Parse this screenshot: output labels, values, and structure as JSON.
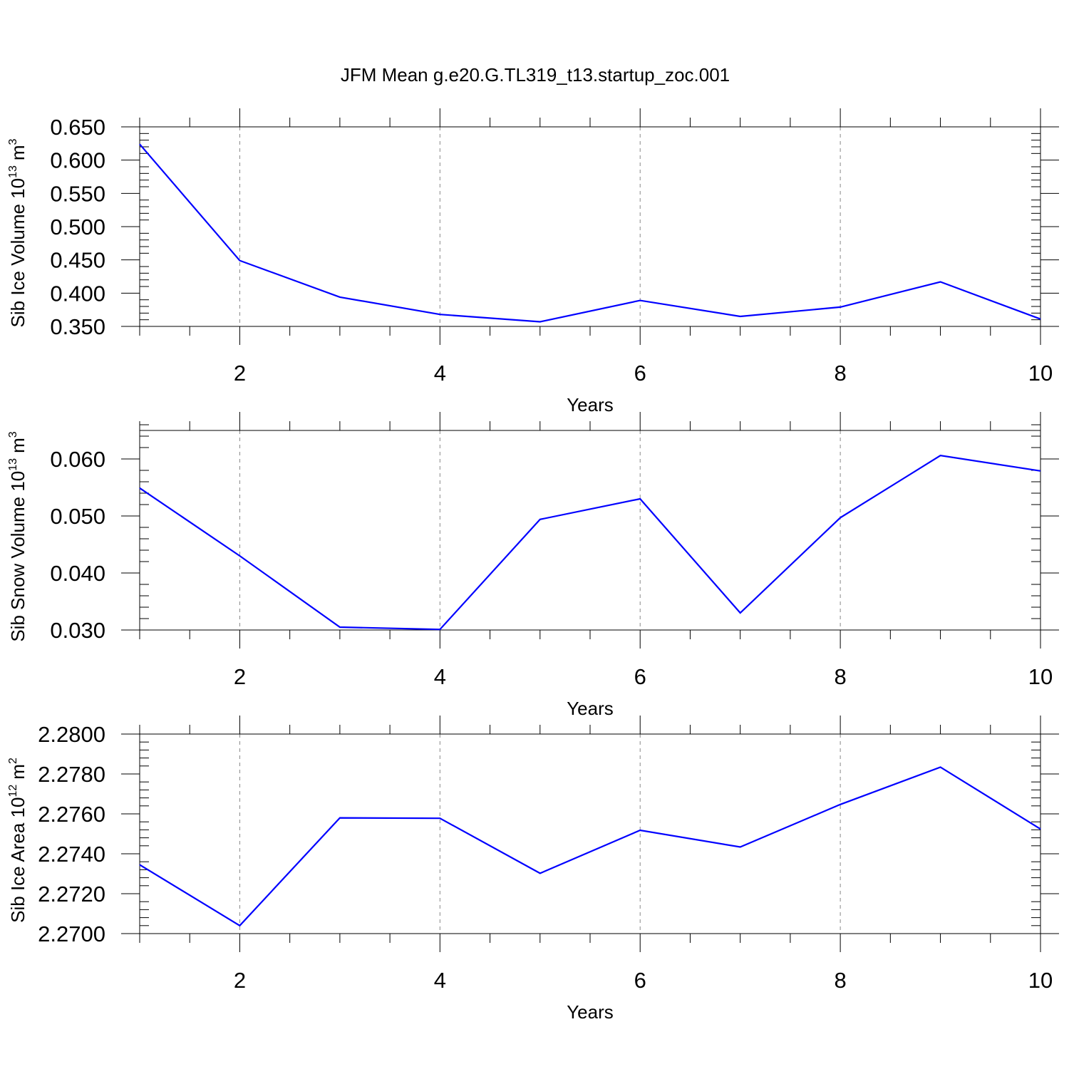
{
  "figure": {
    "title": "JFM Mean g.e20.G.TL319_t13.startup_zoc.001"
  },
  "chart_data": [
    {
      "type": "line",
      "title": "",
      "xlabel": "Years",
      "ylabel": {
        "text": "Sib Ice Volume 10",
        "exponent": "13",
        "unit": "m",
        "unit_exponent": "3"
      },
      "xlim": [
        1,
        10
      ],
      "ylim": [
        0.35,
        0.65
      ],
      "xticks": [
        2,
        4,
        6,
        8,
        10
      ],
      "xtick_labels": [
        "2",
        "4",
        "6",
        "8",
        "10"
      ],
      "yticks": [
        0.35,
        0.4,
        0.45,
        0.5,
        0.55,
        0.6,
        0.65
      ],
      "ytick_labels": [
        "0.350",
        "0.400",
        "0.450",
        "0.500",
        "0.550",
        "0.600",
        "0.650"
      ],
      "y_minor_step": 0.01,
      "grid": "vertical dashed at major x ticks",
      "series": [
        {
          "color": "#0000ff",
          "x": [
            1,
            2,
            3,
            4,
            5,
            6,
            7,
            8,
            9,
            10
          ],
          "values": [
            0.624,
            0.449,
            0.394,
            0.368,
            0.357,
            0.389,
            0.365,
            0.379,
            0.417,
            0.361
          ]
        }
      ]
    },
    {
      "type": "line",
      "title": "",
      "xlabel": "Years",
      "ylabel": {
        "text": "Sib Snow Volume 10",
        "exponent": "13",
        "unit": "m",
        "unit_exponent": "3"
      },
      "xlim": [
        1,
        10
      ],
      "ylim": [
        0.03,
        0.065
      ],
      "xticks": [
        2,
        4,
        6,
        8,
        10
      ],
      "xtick_labels": [
        "2",
        "4",
        "6",
        "8",
        "10"
      ],
      "yticks": [
        0.03,
        0.04,
        0.05,
        0.06
      ],
      "ytick_labels": [
        "0.030",
        "0.040",
        "0.050",
        "0.060"
      ],
      "y_minor_step": 0.002,
      "grid": "vertical dashed at major x ticks",
      "series": [
        {
          "color": "#0000ff",
          "x": [
            1,
            2,
            3,
            4,
            5,
            6,
            7,
            8,
            9,
            10
          ],
          "values": [
            0.0549,
            0.043,
            0.0305,
            0.0301,
            0.0494,
            0.053,
            0.033,
            0.0497,
            0.0606,
            0.0579
          ]
        }
      ]
    },
    {
      "type": "line",
      "title": "",
      "xlabel": "Years",
      "ylabel": {
        "text": "Sib Ice Area 10",
        "exponent": "12",
        "unit": "m",
        "unit_exponent": "2"
      },
      "xlim": [
        1,
        10
      ],
      "ylim": [
        2.27,
        2.28
      ],
      "xticks": [
        2,
        4,
        6,
        8,
        10
      ],
      "xtick_labels": [
        "2",
        "4",
        "6",
        "8",
        "10"
      ],
      "yticks": [
        2.27,
        2.272,
        2.274,
        2.276,
        2.278,
        2.28
      ],
      "ytick_labels": [
        "2.2700",
        "2.2720",
        "2.2740",
        "2.2760",
        "2.2780",
        "2.2800"
      ],
      "y_minor_step": 0.0004,
      "grid": "vertical dashed at major x ticks",
      "series": [
        {
          "color": "#0000ff",
          "x": [
            1,
            2,
            3,
            4,
            5,
            6,
            7,
            8,
            9,
            10
          ],
          "values": [
            2.27345,
            2.2704,
            2.2758,
            2.27578,
            2.27302,
            2.27518,
            2.27434,
            2.27647,
            2.27834,
            2.27524
          ]
        }
      ]
    }
  ]
}
